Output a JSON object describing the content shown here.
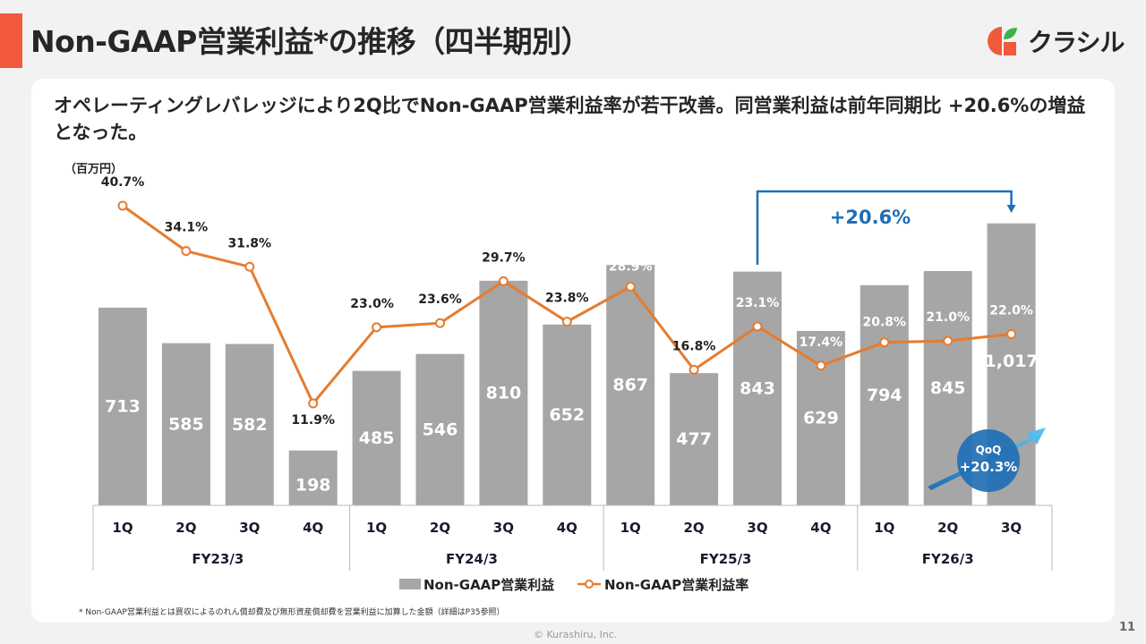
{
  "header": {
    "title": "Non-GAAP営業利益*の推移（四半期別）",
    "logo_text": "クラシル"
  },
  "headline": "オペレーティングレバレッジにより2Q比でNon-GAAP営業利益率が若干改善。同営業利益は前年同期比 +20.6%の増益となった。",
  "colors": {
    "accent": "#f05a3a",
    "bar": "#a6a6a6",
    "line": "#e57c2f",
    "callout_blue": "#1f6fb5",
    "logo_green": "#3cb44a"
  },
  "chart_data": {
    "type": "bar",
    "unit_label": "（百万円）",
    "categories": [
      "1Q",
      "2Q",
      "3Q",
      "4Q",
      "1Q",
      "2Q",
      "3Q",
      "4Q",
      "1Q",
      "2Q",
      "3Q",
      "4Q",
      "1Q",
      "2Q",
      "3Q"
    ],
    "fiscal_years": [
      {
        "label": "FY23/3",
        "count": 4
      },
      {
        "label": "FY24/3",
        "count": 4
      },
      {
        "label": "FY25/3",
        "count": 4
      },
      {
        "label": "FY26/3",
        "count": 3
      }
    ],
    "series": [
      {
        "name": "Non-GAAP営業利益",
        "type": "bar",
        "values": [
          713,
          585,
          582,
          198,
          485,
          546,
          810,
          652,
          867,
          477,
          843,
          629,
          794,
          845,
          1017
        ],
        "labels": [
          "713",
          "585",
          "582",
          "198",
          "485",
          "546",
          "810",
          "652",
          "867",
          "477",
          "843",
          "629",
          "794",
          "845",
          "1,017"
        ]
      },
      {
        "name": "Non-GAAP営業利益率",
        "type": "line",
        "values": [
          40.7,
          34.1,
          31.8,
          11.9,
          23.0,
          23.6,
          29.7,
          23.8,
          28.9,
          16.8,
          23.1,
          17.4,
          20.8,
          21.0,
          22.0
        ],
        "labels": [
          "40.7%",
          "34.1%",
          "31.8%",
          "11.9%",
          "23.0%",
          "23.6%",
          "29.7%",
          "23.8%",
          "28.9%",
          "16.8%",
          "23.1%",
          "17.4%",
          "20.8%",
          "21.0%",
          "22.0%"
        ]
      }
    ],
    "annotations": {
      "yoy": {
        "label": "+20.6%",
        "from_index": 10,
        "to_index": 14
      },
      "qoq": {
        "title": "QoQ",
        "label": "+20.3%"
      }
    },
    "legend": {
      "position": "bottom",
      "items": [
        "Non-GAAP営業利益",
        "Non-GAAP営業利益率"
      ]
    }
  },
  "footnote": "* Non-GAAP営業利益とは買収によるのれん償却費及び無形資産償却費を営業利益に加算した金額（詳細はP35参照）",
  "footer": {
    "copyright": "© Kurashiru, Inc.",
    "page_number": "11"
  }
}
